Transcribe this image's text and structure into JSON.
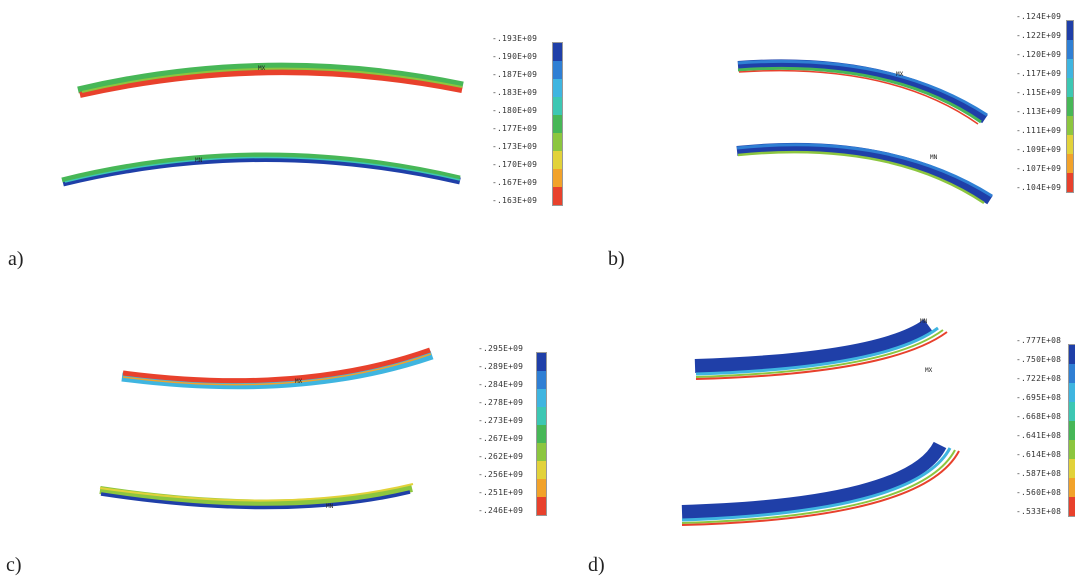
{
  "colors": {
    "bands": [
      "#1f3fa8",
      "#2f7fd4",
      "#3fb5e0",
      "#3dc7b3",
      "#47b757",
      "#8cc63f",
      "#e2d23a",
      "#f2a22a",
      "#e8412c"
    ]
  },
  "panels": [
    {
      "id": "a",
      "label": "a)",
      "scale": [
        "-.193E+09",
        "-.190E+09",
        "-.187E+09",
        "-.183E+09",
        "-.180E+09",
        "-.177E+09",
        "-.173E+09",
        "-.170E+09",
        "-.167E+09",
        "-.163E+09"
      ],
      "upper_marker": "MX",
      "lower_marker": "MN"
    },
    {
      "id": "b",
      "label": "b)",
      "scale": [
        "-.124E+09",
        "-.122E+09",
        "-.120E+09",
        "-.117E+09",
        "-.115E+09",
        "-.113E+09",
        "-.111E+09",
        "-.109E+09",
        "-.107E+09",
        "-.104E+09"
      ],
      "upper_marker": "MX",
      "lower_marker": "MN"
    },
    {
      "id": "c",
      "label": "c)",
      "scale": [
        "-.295E+09",
        "-.289E+09",
        "-.284E+09",
        "-.278E+09",
        "-.273E+09",
        "-.267E+09",
        "-.262E+09",
        "-.256E+09",
        "-.251E+09",
        "-.246E+09"
      ],
      "upper_marker": "MX",
      "lower_marker": "MN"
    },
    {
      "id": "d",
      "label": "d)",
      "scale": [
        "-.777E+08",
        "-.750E+08",
        "-.722E+08",
        "-.695E+08",
        "-.668E+08",
        "-.641E+08",
        "-.614E+08",
        "-.587E+08",
        "-.560E+08",
        "-.533E+08"
      ],
      "upper_marker": "MN",
      "lower_marker": "MX"
    }
  ]
}
